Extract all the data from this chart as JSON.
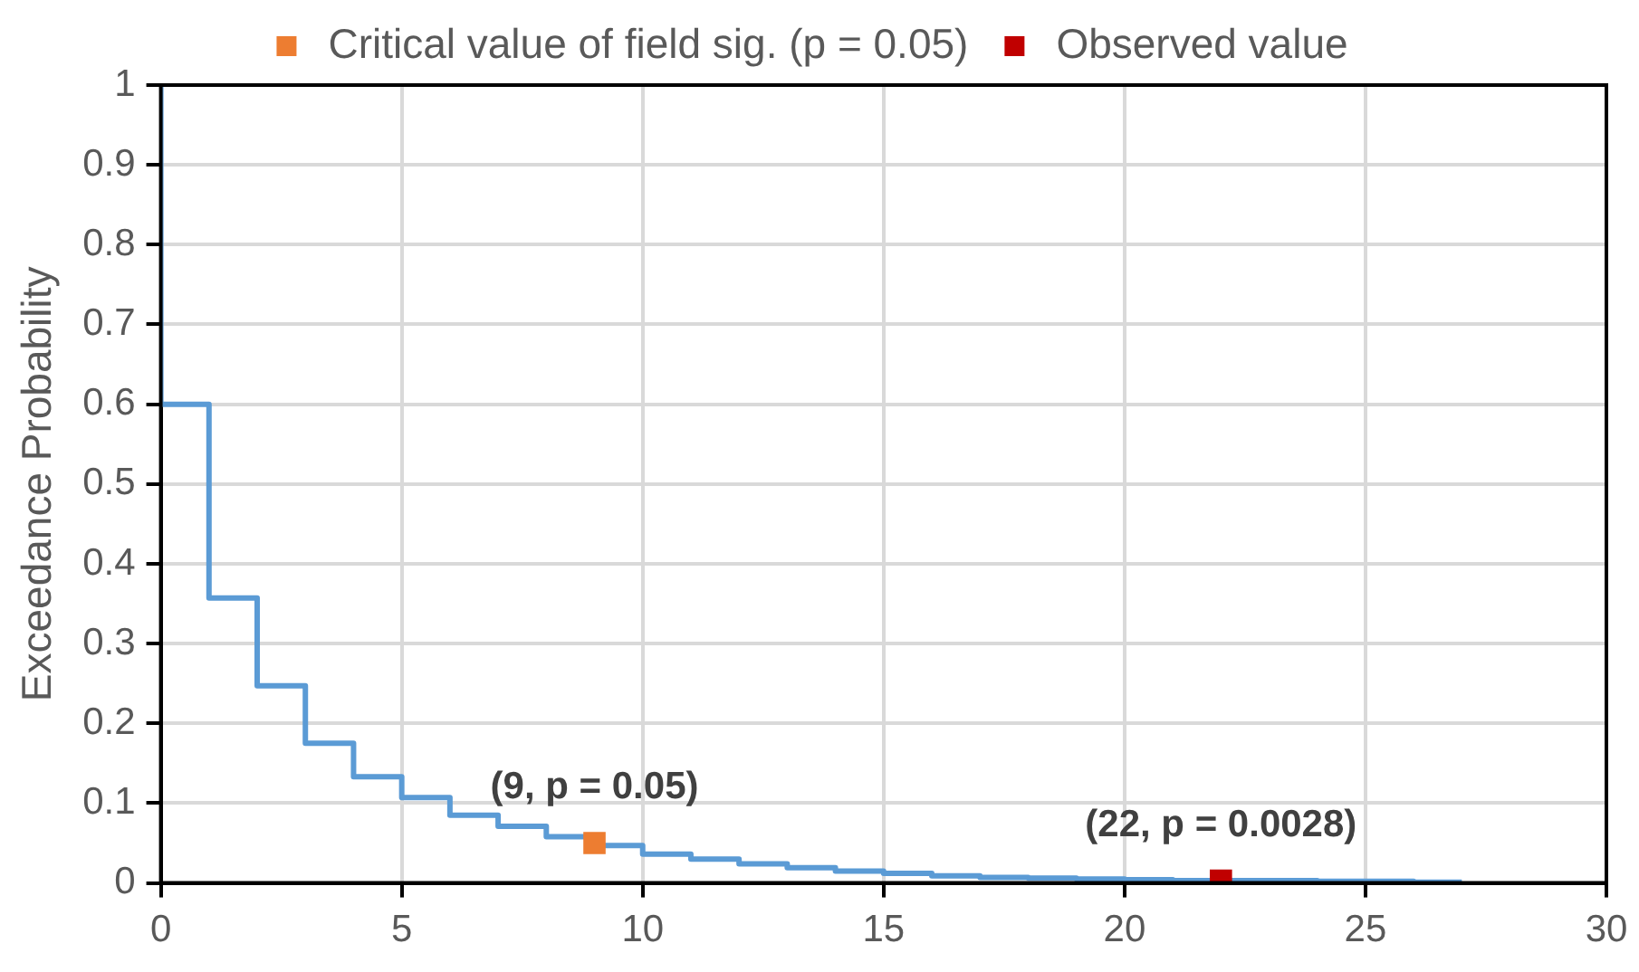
{
  "chart_data": {
    "type": "step",
    "ylabel": "Exceedance Probability",
    "xlim": [
      0,
      30
    ],
    "xticks": [
      0,
      5,
      10,
      15,
      20,
      25,
      30
    ],
    "ylim": [
      0,
      1
    ],
    "yticks": [
      0,
      0.1,
      0.2,
      0.3,
      0.4,
      0.5,
      0.6,
      0.7,
      0.8,
      0.9,
      1
    ],
    "grid": true,
    "legend": "top",
    "marker": "square",
    "series": [
      {
        "marker": "none",
        "color": "#5b9bd5",
        "x": [
          0,
          0,
          1,
          2,
          3,
          4,
          5,
          6,
          7,
          8,
          9,
          10,
          11,
          12,
          13,
          14,
          15,
          16,
          17,
          18,
          19,
          20,
          21,
          22,
          23,
          24,
          25,
          26,
          27
        ],
        "values": [
          1,
          0.6,
          0.357,
          0.247,
          0.175,
          0.133,
          0.107,
          0.085,
          0.071,
          0.058,
          0.047,
          0.036,
          0.03,
          0.024,
          0.019,
          0.015,
          0.012,
          0.009,
          0.007,
          0.006,
          0.005,
          0.004,
          0.003,
          0.003,
          0.003,
          0.002,
          0.002,
          0.001,
          0.001
        ]
      },
      {
        "type": "scatter",
        "name": "Critical value of field sig. (p = 0.05)",
        "color": "#ed7d31",
        "x": [
          9
        ],
        "values": [
          0.05
        ]
      },
      {
        "type": "scatter",
        "name": "Observed value",
        "color": "#c00000",
        "x": [
          22
        ],
        "values": [
          0.0028
        ]
      }
    ],
    "annotations": [
      {
        "text": "(9, p = 0.05)",
        "x": 9,
        "y": 0.05
      },
      {
        "text": "(22, p = 0.0028)",
        "x": 22,
        "y": 0.0028
      }
    ]
  }
}
